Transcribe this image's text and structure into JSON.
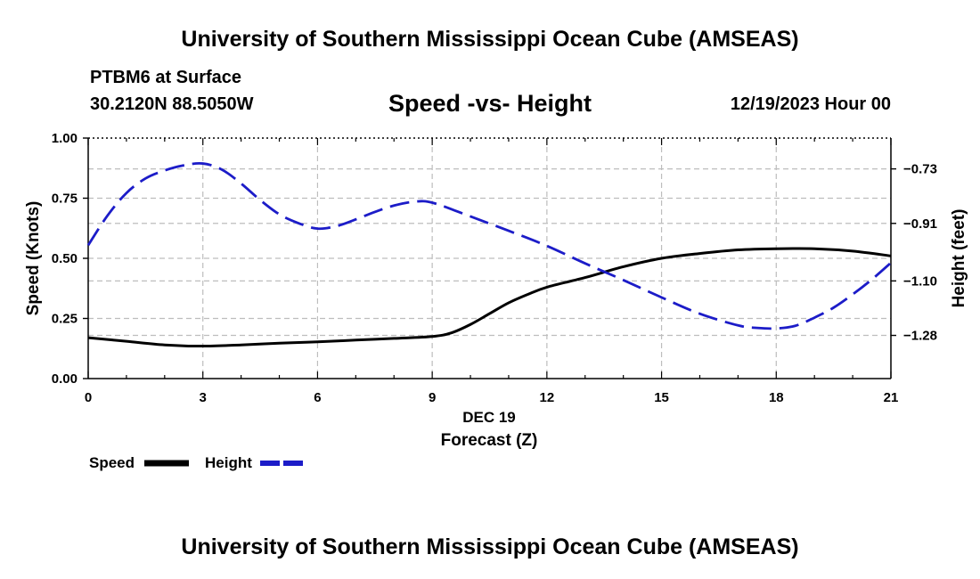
{
  "header": {
    "title": "University of Southern Mississippi Ocean Cube (AMSEAS)",
    "station": "PTBM6 at Surface",
    "coords": "30.2120N  88.5050W",
    "datetime": "12/19/2023 Hour 00"
  },
  "footer": {
    "title": "University of Southern Mississippi Ocean Cube (AMSEAS)"
  },
  "chart_data": {
    "type": "line",
    "title": "Speed -vs- Height",
    "xlabel": "Forecast (Z)",
    "xsublabel": "DEC 19",
    "ylabel": "Speed (Knots)",
    "y2label": "Height (feet)",
    "xlim": [
      0,
      21
    ],
    "ylim": [
      0,
      1
    ],
    "y2lim": [
      -1.4226,
      -0.6282
    ],
    "x_ticks": [
      0,
      3,
      6,
      9,
      12,
      15,
      18,
      21
    ],
    "x_tick_labels": [
      "0",
      "3",
      "6",
      "9",
      "12",
      "15",
      "18",
      "21"
    ],
    "y_ticks": [
      0,
      0.25,
      0.5,
      0.75,
      1.0
    ],
    "y_tick_labels": [
      "0.00",
      "0.25",
      "0.50",
      "0.75",
      "1.00"
    ],
    "y2_ticks": [
      -1.28,
      -1.1,
      -0.91,
      -0.73
    ],
    "y2_tick_labels": [
      "−1.28",
      "−1.10",
      "−0.91",
      "−0.73"
    ],
    "grid": true,
    "series": [
      {
        "name": "Speed",
        "axis": "left",
        "color": "#000000",
        "style": "solid",
        "x": [
          0,
          1,
          2,
          3,
          4,
          5,
          6,
          7,
          8,
          9,
          9.5,
          10,
          10.5,
          11,
          11.5,
          12,
          13,
          14,
          15,
          16,
          17,
          18,
          19,
          20,
          21
        ],
        "values": [
          0.17,
          0.155,
          0.14,
          0.135,
          0.14,
          0.147,
          0.153,
          0.16,
          0.167,
          0.175,
          0.19,
          0.225,
          0.27,
          0.315,
          0.35,
          0.38,
          0.42,
          0.465,
          0.5,
          0.52,
          0.535,
          0.54,
          0.54,
          0.53,
          0.51
        ]
      },
      {
        "name": "Height",
        "axis": "right",
        "color": "#1c1cc8",
        "style": "dashed",
        "x": [
          0,
          0.5,
          1,
          1.5,
          2,
          2.5,
          3,
          3.5,
          4,
          4.5,
          5,
          5.5,
          6,
          6.5,
          7,
          7.5,
          8,
          8.5,
          9,
          10,
          11,
          12,
          13,
          14,
          15,
          16,
          17,
          17.5,
          18,
          18.5,
          19,
          19.5,
          20,
          20.5,
          21
        ],
        "values": [
          -0.9823,
          -0.885,
          -0.8097,
          -0.7615,
          -0.7351,
          -0.7183,
          -0.7122,
          -0.7326,
          -0.7783,
          -0.833,
          -0.88,
          -0.9092,
          -0.9273,
          -0.9189,
          -0.8968,
          -0.8722,
          -0.8511,
          -0.8389,
          -0.8415,
          -0.8871,
          -0.9344,
          -0.9843,
          -1.0421,
          -1.0973,
          -1.1546,
          -1.2084,
          -1.2469,
          -1.2553,
          -1.2569,
          -1.2482,
          -1.2213,
          -1.1883,
          -1.1445,
          -1.0954,
          -1.0402
        ]
      }
    ]
  }
}
